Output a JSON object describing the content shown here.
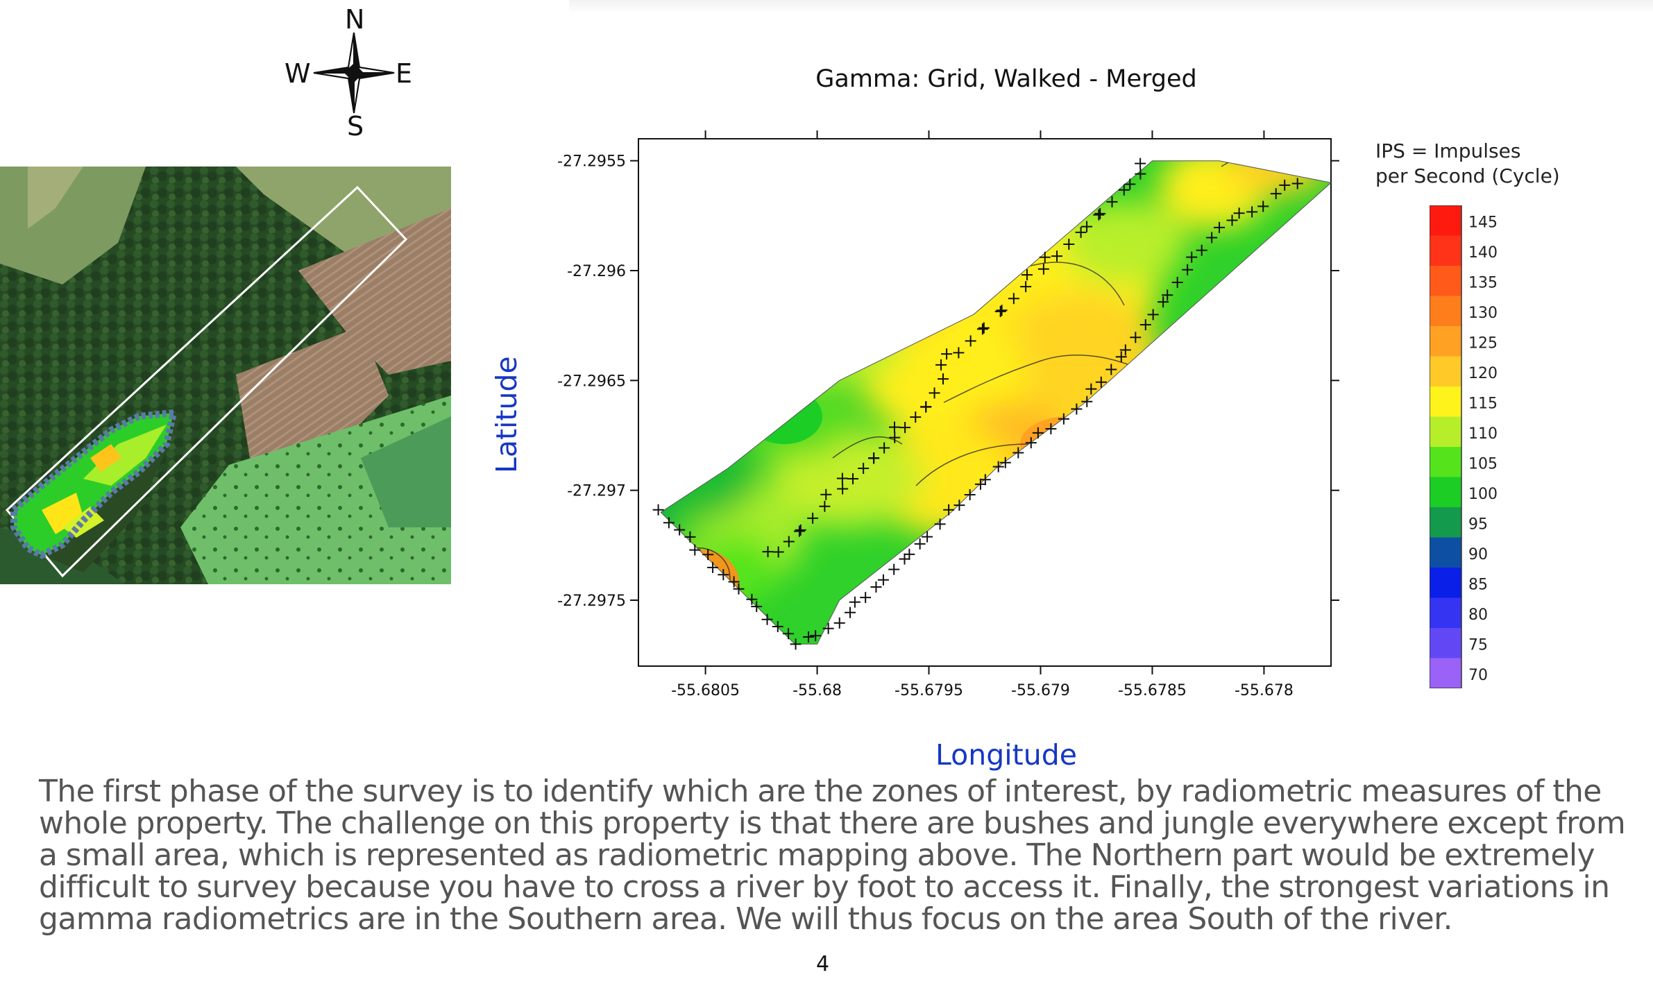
{
  "compass": {
    "n": "N",
    "s": "S",
    "e": "E",
    "w": "W"
  },
  "legend": {
    "title_line1": "IPS = Impulses",
    "title_line2": "per Second (Cycle)",
    "stops": [
      {
        "label": "145",
        "color": "#ff1a10"
      },
      {
        "label": "140",
        "color": "#ff3318"
      },
      {
        "label": "135",
        "color": "#ff5a1a"
      },
      {
        "label": "130",
        "color": "#ff7e1c"
      },
      {
        "label": "125",
        "color": "#ffa122"
      },
      {
        "label": "120",
        "color": "#ffc928"
      },
      {
        "label": "115",
        "color": "#fff31c"
      },
      {
        "label": "110",
        "color": "#b6ef2a"
      },
      {
        "label": "105",
        "color": "#55e41c"
      },
      {
        "label": "100",
        "color": "#1ccd26"
      },
      {
        "label": "95",
        "color": "#149a4c"
      },
      {
        "label": "90",
        "color": "#0d4fa3"
      },
      {
        "label": "85",
        "color": "#0a1fe8"
      },
      {
        "label": "80",
        "color": "#3434f2"
      },
      {
        "label": "75",
        "color": "#6248f5"
      },
      {
        "label": "70",
        "color": "#9a62f7"
      }
    ]
  },
  "chart_data": {
    "type": "heatmap",
    "title": "Gamma: Grid, Walked - Merged",
    "xlabel": "Longitude",
    "ylabel": "Latitude",
    "xlim": [
      -55.6808,
      -55.6777
    ],
    "ylim": [
      -27.2978,
      -27.2954
    ],
    "x_ticks": [
      -55.6805,
      -55.68,
      -55.6795,
      -55.679,
      -55.6785,
      -55.678
    ],
    "x_tick_labels": [
      "-55.6805",
      "-55.68",
      "-55.6795",
      "-55.679",
      "-55.6785",
      "-55.678"
    ],
    "y_ticks": [
      -27.2955,
      -27.296,
      -27.2965,
      -27.297,
      -27.2975
    ],
    "y_tick_labels": [
      "-27.2955",
      "-27.296",
      "-27.2965",
      "-27.297",
      "-27.2975"
    ],
    "colorbar_unit": "IPS",
    "survey_outline": [
      [
        -55.6807,
        -27.2971
      ],
      [
        -55.6804,
        -27.2969
      ],
      [
        -55.6799,
        -27.2965
      ],
      [
        -55.6793,
        -27.2962
      ],
      [
        -55.6785,
        -27.2955
      ],
      [
        -55.6782,
        -27.2955
      ],
      [
        -55.6777,
        -27.2956
      ],
      [
        -55.6788,
        -27.2966
      ],
      [
        -55.6792,
        -27.2969
      ],
      [
        -55.6794,
        -27.2971
      ],
      [
        -55.6799,
        -27.2975
      ],
      [
        -55.68,
        -27.2977
      ],
      [
        -55.6801,
        -27.2977
      ],
      [
        -55.6807,
        -27.2971
      ]
    ],
    "walked_track": [
      [
        -55.6807,
        -27.2971
      ],
      [
        -55.6805,
        -27.2973
      ],
      [
        -55.6803,
        -27.2975
      ],
      [
        -55.6801,
        -27.2977
      ],
      [
        -55.6799,
        -27.2976
      ],
      [
        -55.6797,
        -27.2974
      ],
      [
        -55.6795,
        -27.2972
      ],
      [
        -55.6794,
        -27.2971
      ],
      [
        -55.6792,
        -27.2969
      ],
      [
        -55.6788,
        -27.2966
      ],
      [
        -55.6785,
        -27.2962
      ],
      [
        -55.6782,
        -27.2958
      ],
      [
        -55.678,
        -27.2957
      ],
      [
        -55.6779,
        -27.2956
      ],
      [
        -55.6778,
        -27.2956
      ]
    ],
    "center_track": [
      [
        -55.6802,
        -27.2973
      ],
      [
        -55.6801,
        -27.2972
      ],
      [
        -55.6799,
        -27.297
      ],
      [
        -55.6798,
        -27.2969
      ],
      [
        -55.6797,
        -27.2968
      ],
      [
        -55.6796,
        -27.2967
      ],
      [
        -55.6795,
        -27.2966
      ],
      [
        -55.6794,
        -27.2964
      ],
      [
        -55.6792,
        -27.2962
      ],
      [
        -55.679,
        -27.296
      ],
      [
        -55.6788,
        -27.2958
      ],
      [
        -55.6786,
        -27.2956
      ],
      [
        -55.6785,
        -27.2955
      ]
    ]
  },
  "body_text": "The first phase of the survey is to identify which are the zones of interest, by radiometric measures of the whole property. The challenge on this property is that there are bushes and jungle everywhere except from a small area, which is represented as radiometric mapping above. The Northern part would be extremely difficult to survey because you have to cross a river by foot to access it. Finally, the strongest variations in gamma radiometrics are in the Southern area. We will thus focus on the area South of the river.",
  "page_number": "4"
}
